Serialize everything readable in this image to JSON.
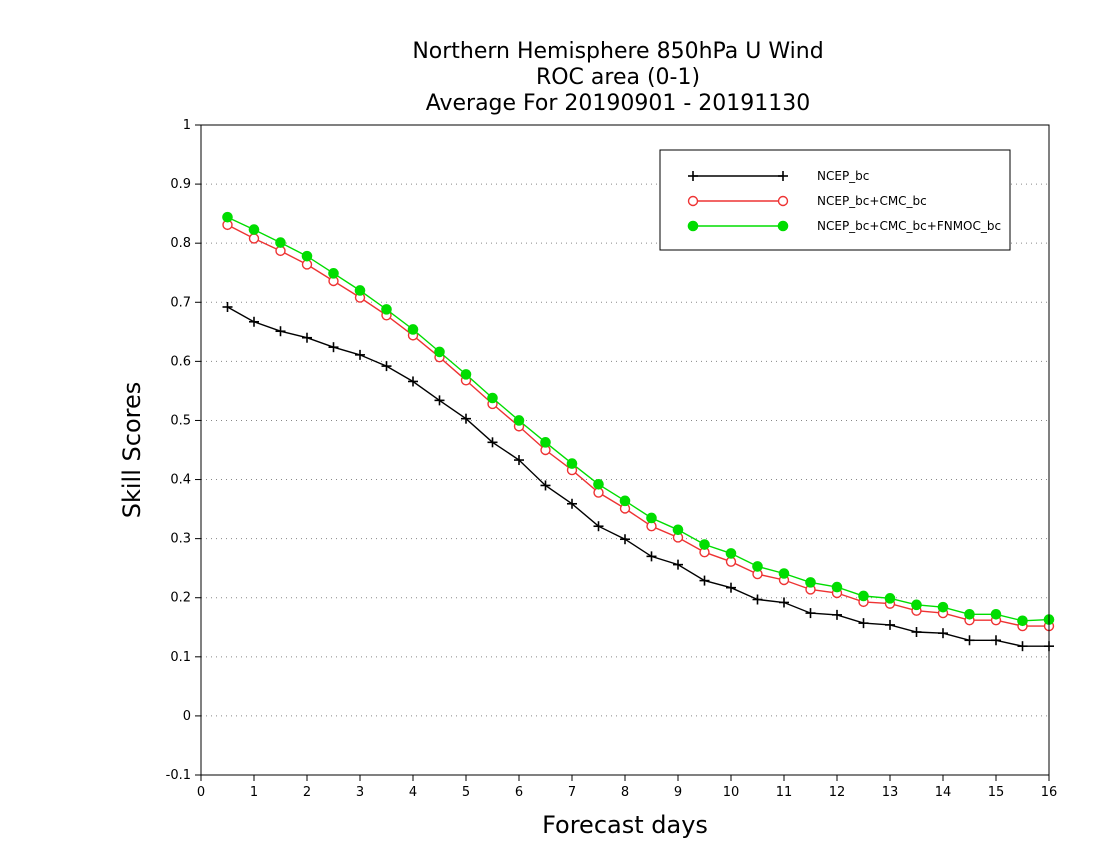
{
  "chart_data": {
    "type": "line",
    "title_lines": [
      "Northern Hemisphere 850hPa U Wind",
      "ROC area (0-1)",
      "Average For 20190901 - 20191130"
    ],
    "xlabel": "Forecast days",
    "ylabel": "Skill Scores",
    "xlim": [
      0,
      16
    ],
    "ylim": [
      -0.1,
      1
    ],
    "xticks": [
      0,
      1,
      2,
      3,
      4,
      5,
      6,
      7,
      8,
      9,
      10,
      11,
      12,
      13,
      14,
      15,
      16
    ],
    "xtick_labels": [
      "0",
      "1",
      "2",
      "3",
      "4",
      "5",
      "6",
      "7",
      "8",
      "9",
      "10",
      "11",
      "12",
      "13",
      "14",
      "15",
      "16"
    ],
    "yticks": [
      -0.1,
      0,
      0.1,
      0.2,
      0.3,
      0.4,
      0.5,
      0.6,
      0.7,
      0.8,
      0.9,
      1
    ],
    "ytick_labels": [
      "-0.1",
      "0",
      "0.1",
      "0.2",
      "0.3",
      "0.4",
      "0.5",
      "0.6",
      "0.7",
      "0.8",
      "0.9",
      "1"
    ],
    "grid": "horizontal dotted",
    "legend_position": "top-right",
    "x": [
      0.5,
      1,
      1.5,
      2,
      2.5,
      3,
      3.5,
      4,
      4.5,
      5,
      5.5,
      6,
      6.5,
      7,
      7.5,
      8,
      8.5,
      9,
      9.5,
      10,
      10.5,
      11,
      11.5,
      12,
      12.5,
      13,
      13.5,
      14,
      14.5,
      15,
      15.5,
      16
    ],
    "series": [
      {
        "name": "NCEP_bc",
        "color": "#000000",
        "marker": "plus",
        "values": [
          0.692,
          0.667,
          0.651,
          0.64,
          0.624,
          0.611,
          0.592,
          0.566,
          0.534,
          0.503,
          0.463,
          0.433,
          0.39,
          0.359,
          0.321,
          0.299,
          0.27,
          0.256,
          0.229,
          0.217,
          0.197,
          0.192,
          0.174,
          0.171,
          0.157,
          0.154,
          0.142,
          0.14,
          0.128,
          0.128,
          0.118,
          0.118
        ]
      },
      {
        "name": "NCEP_bc+CMC_bc",
        "color": "#ee3333",
        "marker": "open-circle",
        "values": [
          0.831,
          0.808,
          0.787,
          0.764,
          0.736,
          0.708,
          0.678,
          0.644,
          0.607,
          0.568,
          0.528,
          0.49,
          0.45,
          0.416,
          0.378,
          0.351,
          0.321,
          0.302,
          0.277,
          0.261,
          0.24,
          0.23,
          0.214,
          0.208,
          0.193,
          0.19,
          0.178,
          0.174,
          0.162,
          0.162,
          0.152,
          0.152
        ]
      },
      {
        "name": "NCEP_bc+CMC_bc+FNMOC_bc",
        "color": "#00dd00",
        "marker": "filled-circle",
        "values": [
          0.844,
          0.823,
          0.801,
          0.778,
          0.749,
          0.72,
          0.688,
          0.654,
          0.616,
          0.578,
          0.538,
          0.5,
          0.463,
          0.427,
          0.392,
          0.364,
          0.335,
          0.315,
          0.29,
          0.275,
          0.253,
          0.241,
          0.226,
          0.218,
          0.203,
          0.199,
          0.188,
          0.184,
          0.172,
          0.172,
          0.161,
          0.163
        ]
      }
    ]
  }
}
